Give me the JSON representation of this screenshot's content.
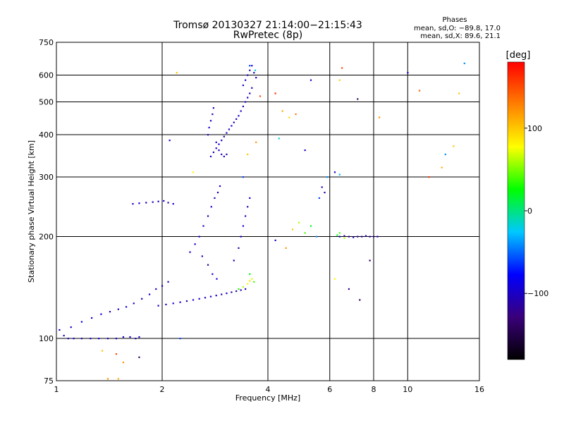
{
  "chart_data": {
    "type": "scatter",
    "title": "Tromsø 20130327 21:14:00−21:15:43",
    "subtitle": "RwPretec (8p)",
    "xlabel": "Frequency [MHz]",
    "ylabel": "Stationary phase Virtual Height [km]",
    "xscale": "log",
    "yscale": "log",
    "xlim": [
      1,
      16
    ],
    "ylim": [
      75,
      750
    ],
    "xticks": [
      1,
      2,
      4,
      6,
      8,
      10,
      16
    ],
    "xtick_labels": [
      "1",
      "2",
      "4",
      "6",
      "8",
      "10",
      "16"
    ],
    "yticks": [
      75,
      100,
      200,
      300,
      400,
      500,
      600,
      750
    ],
    "ytick_labels": [
      "75",
      "100",
      "200",
      "300",
      "400",
      "500",
      "600",
      "750"
    ],
    "grid": true,
    "phase_stats": {
      "title": "Phases",
      "line_o": "mean, sd,O: −89.8, 17.0",
      "line_x": "mean, sd,X: 89.6, 21.1"
    },
    "colorbar": {
      "label": "[deg]",
      "range": [
        -180,
        180
      ],
      "ticks": [
        100,
        0,
        -100
      ],
      "tick_labels": [
        "100",
        "0",
        "−100"
      ],
      "colors": [
        "#000000",
        "#3a007a",
        "#0000ff",
        "#00c8ff",
        "#00ff00",
        "#ffff00",
        "#ff8000",
        "#ff0000"
      ]
    },
    "points": [
      [
        1.02,
        106,
        -100
      ],
      [
        1.05,
        102,
        -100
      ],
      [
        1.08,
        100,
        -100
      ],
      [
        1.12,
        100,
        -95
      ],
      [
        1.18,
        100,
        -110
      ],
      [
        1.25,
        100,
        -100
      ],
      [
        1.32,
        100,
        -90
      ],
      [
        1.4,
        100,
        -105
      ],
      [
        1.48,
        100,
        -100
      ],
      [
        1.55,
        101,
        -100
      ],
      [
        1.62,
        101,
        -95
      ],
      [
        1.68,
        100,
        -110
      ],
      [
        1.72,
        101,
        -100
      ],
      [
        1.1,
        108,
        -100
      ],
      [
        1.18,
        112,
        -90
      ],
      [
        1.26,
        115,
        -100
      ],
      [
        1.34,
        118,
        -95
      ],
      [
        1.42,
        120,
        -110
      ],
      [
        1.5,
        122,
        -100
      ],
      [
        1.58,
        124,
        -90
      ],
      [
        1.66,
        127,
        -100
      ],
      [
        1.75,
        131,
        -105
      ],
      [
        1.84,
        135,
        -100
      ],
      [
        1.92,
        140,
        -95
      ],
      [
        2.0,
        143,
        -100
      ],
      [
        2.08,
        147,
        -110
      ],
      [
        1.95,
        125,
        -100
      ],
      [
        2.05,
        126,
        -105
      ],
      [
        2.15,
        127,
        -100
      ],
      [
        2.25,
        128,
        -95
      ],
      [
        2.35,
        129,
        -110
      ],
      [
        2.45,
        130,
        -100
      ],
      [
        2.55,
        131,
        -100
      ],
      [
        2.65,
        132,
        -105
      ],
      [
        2.75,
        133,
        -100
      ],
      [
        2.85,
        134,
        -95
      ],
      [
        2.95,
        135,
        -110
      ],
      [
        3.05,
        136,
        -100
      ],
      [
        3.15,
        137,
        -115
      ],
      [
        3.25,
        138,
        -110
      ],
      [
        3.35,
        139,
        -105
      ],
      [
        3.45,
        140,
        -100
      ],
      [
        1.65,
        250,
        -100
      ],
      [
        1.72,
        251,
        -95
      ],
      [
        1.8,
        252,
        -100
      ],
      [
        1.88,
        253,
        -105
      ],
      [
        1.95,
        254,
        -100
      ],
      [
        2.02,
        255,
        -95
      ],
      [
        2.08,
        252,
        -110
      ],
      [
        2.15,
        250,
        -100
      ],
      [
        2.4,
        180,
        -100
      ],
      [
        2.48,
        190,
        -95
      ],
      [
        2.55,
        200,
        -100
      ],
      [
        2.62,
        215,
        -105
      ],
      [
        2.7,
        230,
        -100
      ],
      [
        2.76,
        245,
        -95
      ],
      [
        2.82,
        260,
        -110
      ],
      [
        2.88,
        270,
        -100
      ],
      [
        2.92,
        282,
        -95
      ],
      [
        2.6,
        175,
        -100
      ],
      [
        2.7,
        165,
        -110
      ],
      [
        2.78,
        155,
        -100
      ],
      [
        2.86,
        150,
        -95
      ],
      [
        2.75,
        345,
        -100
      ],
      [
        2.8,
        355,
        -105
      ],
      [
        2.85,
        365,
        -100
      ],
      [
        2.9,
        375,
        -95
      ],
      [
        2.95,
        385,
        -100
      ],
      [
        3.0,
        395,
        -110
      ],
      [
        3.05,
        405,
        -100
      ],
      [
        3.1,
        415,
        -95
      ],
      [
        3.15,
        425,
        -100
      ],
      [
        3.2,
        435,
        -105
      ],
      [
        3.25,
        445,
        -100
      ],
      [
        3.3,
        455,
        -95
      ],
      [
        3.35,
        470,
        -100
      ],
      [
        3.4,
        485,
        -110
      ],
      [
        3.45,
        500,
        -100
      ],
      [
        3.5,
        515,
        -95
      ],
      [
        3.55,
        530,
        -100
      ],
      [
        3.6,
        550,
        -105
      ],
      [
        2.7,
        400,
        -100
      ],
      [
        2.72,
        420,
        -95
      ],
      [
        2.75,
        440,
        -100
      ],
      [
        2.78,
        460,
        -110
      ],
      [
        2.8,
        480,
        -100
      ],
      [
        2.85,
        380,
        -95
      ],
      [
        2.9,
        360,
        -100
      ],
      [
        2.95,
        350,
        -105
      ],
      [
        3.0,
        345,
        -100
      ],
      [
        3.05,
        350,
        -110
      ],
      [
        3.4,
        560,
        -100
      ],
      [
        3.45,
        580,
        -95
      ],
      [
        3.5,
        600,
        -100
      ],
      [
        3.55,
        620,
        -110
      ],
      [
        3.6,
        640,
        -100
      ],
      [
        3.65,
        610,
        -95
      ],
      [
        3.7,
        590,
        -100
      ],
      [
        3.3,
        140,
        35
      ],
      [
        3.4,
        142,
        60
      ],
      [
        3.5,
        145,
        80
      ],
      [
        3.55,
        148,
        90
      ],
      [
        3.6,
        150,
        70
      ],
      [
        3.65,
        147,
        40
      ],
      [
        3.55,
        155,
        20
      ],
      [
        3.2,
        170,
        -100
      ],
      [
        3.3,
        185,
        -110
      ],
      [
        3.35,
        200,
        -100
      ],
      [
        3.4,
        215,
        -95
      ],
      [
        3.45,
        230,
        -100
      ],
      [
        3.5,
        245,
        -105
      ],
      [
        3.55,
        260,
        -100
      ],
      [
        3.4,
        300,
        -60
      ],
      [
        3.5,
        350,
        100
      ],
      [
        3.7,
        380,
        120
      ],
      [
        3.8,
        520,
        150
      ],
      [
        4.2,
        530,
        160
      ],
      [
        4.4,
        470,
        110
      ],
      [
        4.6,
        450,
        90
      ],
      [
        4.8,
        460,
        130
      ],
      [
        4.7,
        210,
        100
      ],
      [
        4.9,
        220,
        60
      ],
      [
        5.1,
        205,
        40
      ],
      [
        5.3,
        215,
        20
      ],
      [
        5.5,
        200,
        -40
      ],
      [
        4.2,
        195,
        -100
      ],
      [
        4.5,
        185,
        120
      ],
      [
        5.6,
        260,
        -60
      ],
      [
        5.7,
        280,
        -100
      ],
      [
        5.8,
        270,
        -110
      ],
      [
        5.9,
        300,
        -40
      ],
      [
        6.2,
        310,
        -100
      ],
      [
        6.4,
        305,
        -30
      ],
      [
        6.4,
        200,
        -100
      ],
      [
        6.6,
        201,
        -110
      ],
      [
        6.8,
        200,
        -120
      ],
      [
        7.0,
        199,
        -100
      ],
      [
        7.2,
        200,
        -110
      ],
      [
        7.4,
        200,
        -120
      ],
      [
        7.6,
        201,
        -100
      ],
      [
        7.8,
        200,
        -110
      ],
      [
        8.0,
        200,
        -120
      ],
      [
        8.2,
        200,
        -100
      ],
      [
        6.4,
        205,
        40
      ],
      [
        6.6,
        198,
        60
      ],
      [
        6.3,
        202,
        20
      ],
      [
        6.4,
        580,
        100
      ],
      [
        6.5,
        630,
        150
      ],
      [
        7.2,
        510,
        -140
      ],
      [
        8.3,
        450,
        120
      ],
      [
        10.0,
        610,
        -100
      ],
      [
        10.8,
        540,
        140
      ],
      [
        11.5,
        300,
        160
      ],
      [
        12.5,
        320,
        110
      ],
      [
        12.8,
        350,
        -40
      ],
      [
        13.5,
        370,
        100
      ],
      [
        14.0,
        530,
        100
      ],
      [
        14.5,
        650,
        -40
      ],
      [
        6.8,
        140,
        -120
      ],
      [
        7.3,
        130,
        -140
      ],
      [
        7.8,
        170,
        -140
      ],
      [
        6.2,
        150,
        80
      ],
      [
        5.3,
        580,
        -100
      ],
      [
        5.1,
        360,
        -100
      ],
      [
        4.3,
        390,
        -20
      ],
      [
        1.48,
        90,
        150
      ],
      [
        1.55,
        85,
        120
      ],
      [
        1.72,
        88,
        -140
      ],
      [
        1.35,
        92,
        100
      ],
      [
        1.4,
        76,
        120
      ],
      [
        1.5,
        76,
        110
      ],
      [
        2.25,
        100,
        -60
      ],
      [
        2.2,
        610,
        100
      ],
      [
        2.1,
        385,
        -100
      ],
      [
        3.55,
        640,
        -60
      ],
      [
        3.68,
        620,
        -20
      ],
      [
        2.45,
        310,
        80
      ]
    ]
  }
}
